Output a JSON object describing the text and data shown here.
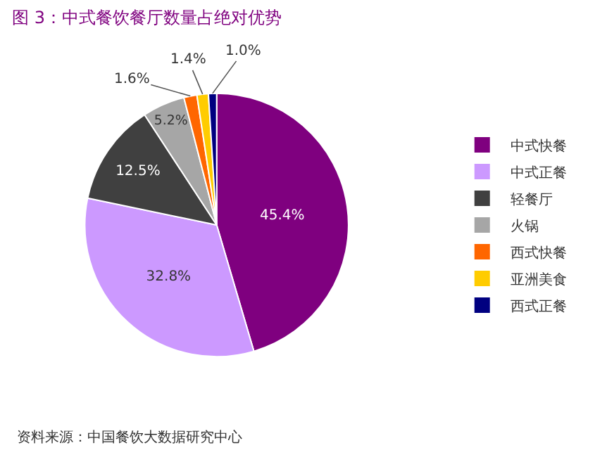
{
  "chart_data": {
    "type": "pie",
    "title": "图 3：中式餐饮餐厅数量占绝对优势",
    "categories": [
      "中式快餐",
      "中式正餐",
      "轻餐厅",
      "火锅",
      "西式快餐",
      "亚洲美食",
      "西式正餐"
    ],
    "values": [
      45.4,
      32.8,
      12.5,
      5.2,
      1.6,
      1.4,
      1.0
    ],
    "value_labels": [
      "45.4%",
      "32.8%",
      "12.5%",
      "5.2%",
      "1.6%",
      "1.4%",
      "1.0%"
    ],
    "colors": [
      "#7f007f",
      "#cc99ff",
      "#404040",
      "#a6a6a6",
      "#ff6600",
      "#ffcc00",
      "#000080"
    ],
    "legend": "right",
    "annotations": [
      "资料来源：中国餐饮大数据研究中心"
    ]
  }
}
